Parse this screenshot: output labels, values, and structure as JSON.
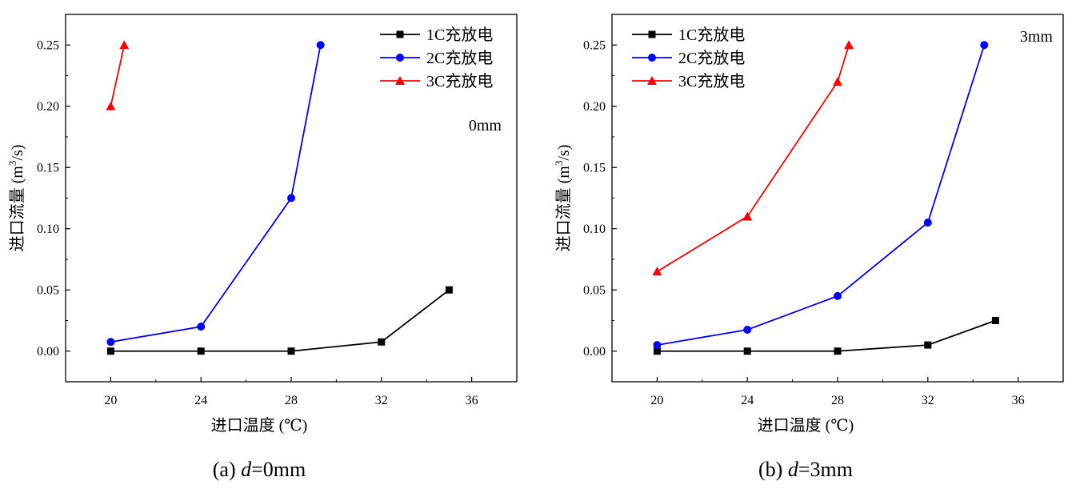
{
  "chart_data": [
    {
      "type": "line",
      "annotation": "0mm",
      "caption": {
        "prefix": "(a) ",
        "var": "d",
        "suffix": "=0mm"
      },
      "xlabel": "进口温度 (℃)",
      "ylabel": {
        "main": "进口流量 (m",
        "sup": "3",
        "tail": "/s)"
      },
      "xlim": [
        18,
        38
      ],
      "ylim": [
        -0.025,
        0.275
      ],
      "xticks": [
        "20",
        "24",
        "28",
        "32",
        "36"
      ],
      "yticks": [
        "0.00",
        "0.05",
        "0.10",
        "0.15",
        "0.20",
        "0.25"
      ],
      "legend_position": "top-right",
      "series": [
        {
          "name": "1C充放电",
          "color": "#000000",
          "marker": "square",
          "x": [
            20,
            24,
            28,
            32,
            35
          ],
          "y": [
            0,
            0,
            0,
            0.0075,
            0.05
          ]
        },
        {
          "name": "2C充放电",
          "color": "#0000ff",
          "marker": "circle",
          "x": [
            20,
            24,
            28,
            29.3
          ],
          "y": [
            0.0075,
            0.02,
            0.125,
            0.25
          ]
        },
        {
          "name": "3C充放电",
          "color": "#ff0000",
          "marker": "triangle",
          "x": [
            20,
            20.6
          ],
          "y": [
            0.2,
            0.25
          ]
        }
      ]
    },
    {
      "type": "line",
      "annotation": "3mm",
      "caption": {
        "prefix": "(b) ",
        "var": "d",
        "suffix": "=3mm"
      },
      "xlabel": "进口温度 (℃)",
      "ylabel": {
        "main": "进口流量 (m",
        "sup": "3",
        "tail": "/s)"
      },
      "xlim": [
        18,
        38
      ],
      "ylim": [
        -0.025,
        0.275
      ],
      "xticks": [
        "20",
        "24",
        "28",
        "32",
        "36"
      ],
      "yticks": [
        "0.00",
        "0.05",
        "0.10",
        "0.15",
        "0.20",
        "0.25"
      ],
      "legend_position": "top-left",
      "series": [
        {
          "name": "1C充放电",
          "color": "#000000",
          "marker": "square",
          "x": [
            20,
            24,
            28,
            32,
            35
          ],
          "y": [
            0,
            0,
            0,
            0.005,
            0.025
          ]
        },
        {
          "name": "2C充放电",
          "color": "#0000ff",
          "marker": "circle",
          "x": [
            20,
            24,
            28,
            32,
            34.5
          ],
          "y": [
            0.005,
            0.0175,
            0.045,
            0.105,
            0.25
          ]
        },
        {
          "name": "3C充放电",
          "color": "#ff0000",
          "marker": "triangle",
          "x": [
            20,
            24,
            28,
            28.5
          ],
          "y": [
            0.065,
            0.11,
            0.22,
            0.25
          ]
        }
      ]
    }
  ]
}
